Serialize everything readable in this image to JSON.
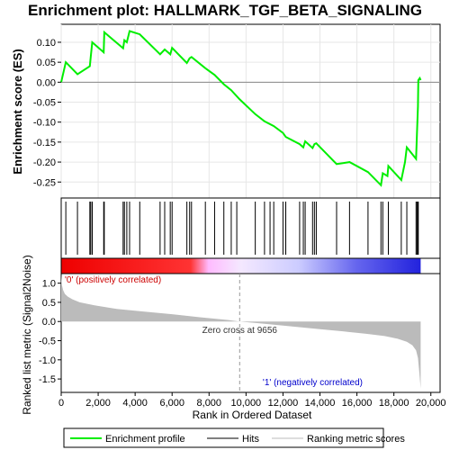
{
  "chart_data": {
    "type": "line",
    "title": "Enrichment plot: HALLMARK_TGF_BETA_SIGNALING",
    "xlabel": "Rank in Ordered Dataset",
    "es_panel": {
      "ylabel": "Enrichment score (ES)",
      "ylim": [
        -0.29,
        0.145
      ],
      "yticks": [
        -0.25,
        -0.2,
        -0.15,
        -0.1,
        -0.05,
        0.0,
        0.05,
        0.1
      ],
      "series": [
        {
          "name": "Enrichment profile",
          "color": "#00ee00",
          "x": [
            0,
            250,
            880,
            1550,
            1600,
            1680,
            2300,
            2330,
            3350,
            3420,
            3550,
            3700,
            4250,
            5350,
            5600,
            5900,
            6000,
            6800,
            6950,
            7050,
            7800,
            8300,
            8800,
            9200,
            9656,
            10500,
            11000,
            11500,
            12000,
            12150,
            12900,
            13100,
            13200,
            13600,
            13700,
            13800,
            14900,
            15600,
            16600,
            17300,
            17400,
            17650,
            17700,
            18400,
            18600,
            18700,
            19200,
            19250,
            19300,
            19320,
            19400,
            19450
          ],
          "y": [
            0.0,
            0.05,
            0.02,
            0.04,
            0.065,
            0.1,
            0.075,
            0.125,
            0.085,
            0.105,
            0.1,
            0.128,
            0.12,
            0.07,
            0.082,
            0.07,
            0.086,
            0.048,
            0.06,
            0.063,
            0.035,
            0.018,
            -0.005,
            -0.02,
            -0.043,
            -0.08,
            -0.098,
            -0.11,
            -0.127,
            -0.137,
            -0.155,
            -0.163,
            -0.148,
            -0.165,
            -0.155,
            -0.153,
            -0.205,
            -0.2,
            -0.225,
            -0.258,
            -0.228,
            -0.235,
            -0.21,
            -0.245,
            -0.2,
            -0.163,
            -0.192,
            -0.128,
            -0.06,
            0.005,
            0.01,
            0.005
          ]
        }
      ]
    },
    "hits_panel": {
      "series_name": "Hits",
      "hit_ranks": [
        250,
        880,
        1550,
        1600,
        1680,
        2300,
        2330,
        3350,
        3420,
        3550,
        3700,
        4250,
        5350,
        5600,
        5900,
        6000,
        6800,
        6950,
        7050,
        7800,
        8300,
        8800,
        9200,
        9500,
        10500,
        11000,
        11300,
        11500,
        12000,
        12150,
        12900,
        13100,
        13200,
        13600,
        13700,
        13800,
        14900,
        15600,
        16600,
        17300,
        17400,
        17700,
        18400,
        18700,
        19200,
        19250,
        19300,
        19320
      ]
    },
    "heatbar": {
      "colors": {
        "positive": "#ee0000",
        "positive_light": "#ffbbff",
        "negative_light": "#ccccff",
        "negative": "#2222dd"
      }
    },
    "metric_panel": {
      "ylabel": "Ranked list metric (Signal2Noise)",
      "ylim": [
        -1.85,
        1.25
      ],
      "yticks": [
        -1.5,
        -1.0,
        -0.5,
        0.0,
        0.5,
        1.0
      ],
      "series_name": "Ranking metric scores",
      "fill_color": "#bbbbbb",
      "profile_x": [
        0,
        40,
        100,
        200,
        350,
        600,
        1000,
        1800,
        3000,
        4500,
        6000,
        7500,
        9000,
        9656,
        11000,
        12500,
        14000,
        15500,
        16500,
        17500,
        18200,
        18700,
        19000,
        19200,
        19300,
        19380,
        19450
      ],
      "profile_y": [
        1.22,
        0.95,
        0.82,
        0.72,
        0.65,
        0.58,
        0.5,
        0.42,
        0.33,
        0.26,
        0.19,
        0.11,
        0.04,
        0.0,
        -0.06,
        -0.13,
        -0.2,
        -0.27,
        -0.32,
        -0.38,
        -0.45,
        -0.53,
        -0.62,
        -0.75,
        -0.95,
        -1.35,
        -1.75
      ],
      "zero_cross_rank": 9656,
      "zero_cross_label": "Zero cross at 9656",
      "pos_label": "'0' (positively correlated)",
      "neg_label": "'1' (negatively correlated)"
    },
    "x_axis": {
      "xlim": [
        0,
        20500
      ],
      "xticks": [
        0,
        2000,
        4000,
        6000,
        8000,
        10000,
        12000,
        14000,
        16000,
        18000,
        20000
      ],
      "xtick_labels": [
        "0",
        "2,000",
        "4,000",
        "6,000",
        "8,000",
        "10,000",
        "12,000",
        "14,000",
        "16,000",
        "18,000",
        "20,000"
      ],
      "n_genes": 19450
    },
    "legend": {
      "placement": "bottom",
      "entries": [
        {
          "label": "Enrichment profile",
          "color": "#00ee00"
        },
        {
          "label": "Hits",
          "color": "#000000"
        },
        {
          "label": "Ranking metric scores",
          "color": "#bbbbbb"
        }
      ]
    },
    "es_tick_labels": [
      "-0.25",
      "-0.20",
      "-0.15",
      "-0.10",
      "-0.05",
      "0.00",
      "0.05",
      "0.10"
    ],
    "metric_tick_labels": [
      "-1.5",
      "-1.0",
      "-0.5",
      "0.0",
      "0.5",
      "1.0"
    ]
  }
}
